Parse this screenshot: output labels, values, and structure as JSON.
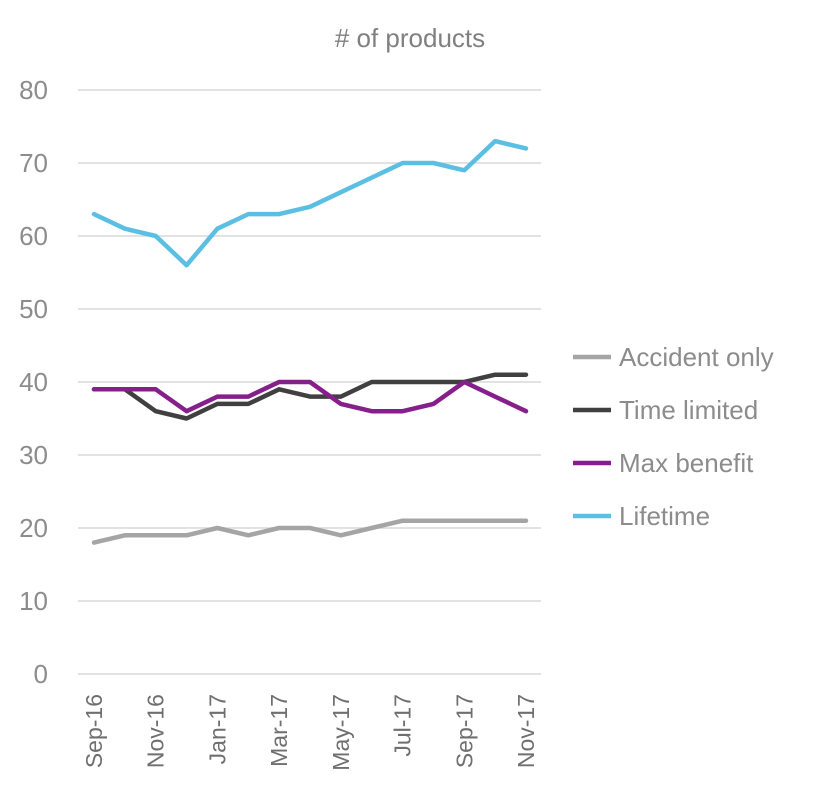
{
  "chart_data": {
    "type": "line",
    "title": "# of products",
    "xlabel": "",
    "ylabel": "",
    "ylim": [
      0,
      80
    ],
    "yticks": [
      0,
      10,
      20,
      30,
      40,
      50,
      60,
      70,
      80
    ],
    "grid": true,
    "legend_position": "right",
    "x": [
      "Sep-16",
      "Oct-16",
      "Nov-16",
      "Dec-16",
      "Jan-17",
      "Feb-17",
      "Mar-17",
      "Apr-17",
      "May-17",
      "Jun-17",
      "Jul-17",
      "Aug-17",
      "Sep-17",
      "Oct-17",
      "Nov-17"
    ],
    "x_tick_labels": [
      "Sep-16",
      "Nov-16",
      "Jan-17",
      "Mar-17",
      "May-17",
      "Jul-17",
      "Sep-17",
      "Nov-17"
    ],
    "series": [
      {
        "name": "Accident only",
        "color": "#a5a5a5",
        "values": [
          18,
          19,
          19,
          19,
          20,
          19,
          20,
          20,
          19,
          20,
          21,
          21,
          21,
          21,
          21
        ]
      },
      {
        "name": "Time limited",
        "color": "#404040",
        "values": [
          39,
          39,
          36,
          35,
          37,
          37,
          39,
          38,
          38,
          40,
          40,
          40,
          40,
          41,
          41
        ]
      },
      {
        "name": "Max benefit",
        "color": "#861f8c",
        "values": [
          39,
          39,
          39,
          36,
          38,
          38,
          40,
          40,
          37,
          36,
          36,
          37,
          40,
          38,
          36
        ]
      },
      {
        "name": "Lifetime",
        "color": "#5bbfe3",
        "values": [
          63,
          61,
          60,
          56,
          61,
          63,
          63,
          64,
          66,
          68,
          70,
          70,
          69,
          73,
          72
        ]
      }
    ]
  }
}
